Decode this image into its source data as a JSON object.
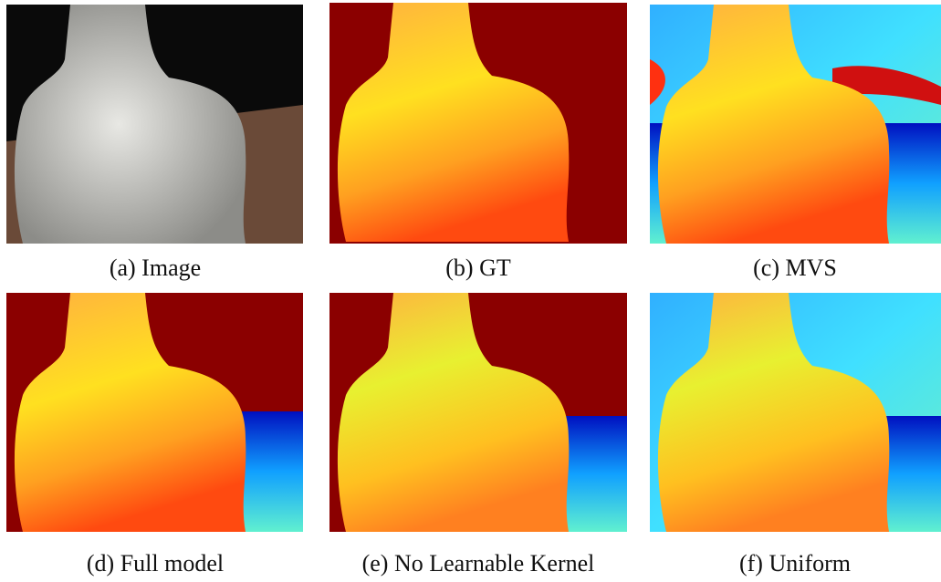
{
  "panels": [
    {
      "caption": "(a)  Image"
    },
    {
      "caption": "(b)  GT"
    },
    {
      "caption": "(c)  MVS"
    },
    {
      "caption": "(d)  Full model"
    },
    {
      "caption": "(e)  No Learnable Kernel"
    },
    {
      "caption": "(f)  Uniform"
    }
  ]
}
